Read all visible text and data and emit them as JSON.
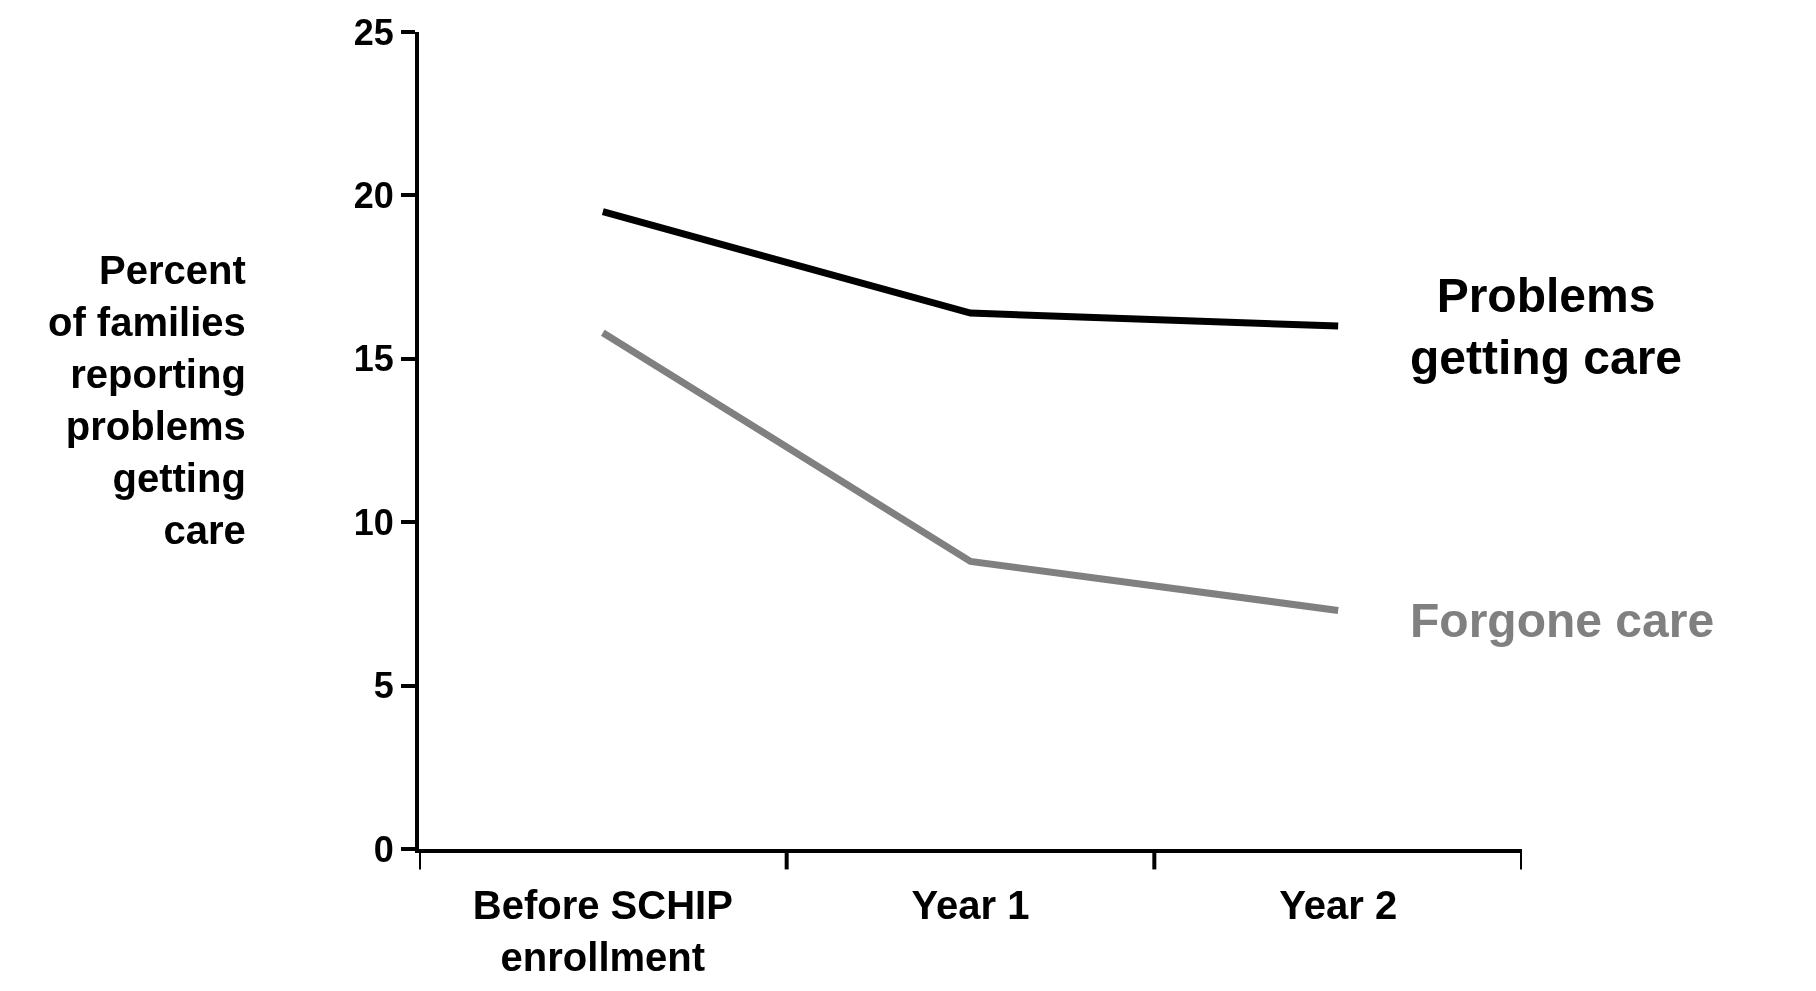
{
  "chart_data": {
    "type": "line",
    "ylabel": "Percent\nof families\nreporting\nproblems\ngetting\ncare",
    "categories": [
      "Before SCHIP\nenrollment",
      "Year 1",
      "Year 2"
    ],
    "series": [
      {
        "name": "Problems\ngetting care",
        "color": "#000000",
        "values": [
          19.5,
          16.4,
          16.0
        ]
      },
      {
        "name": "Forgone care",
        "color": "#808080",
        "values": [
          15.8,
          8.8,
          7.3
        ]
      }
    ],
    "ylim": [
      0,
      25
    ],
    "yticks": [
      0,
      5,
      10,
      15,
      20,
      25
    ],
    "legend": false,
    "marker": "none",
    "line_style": "solid"
  }
}
